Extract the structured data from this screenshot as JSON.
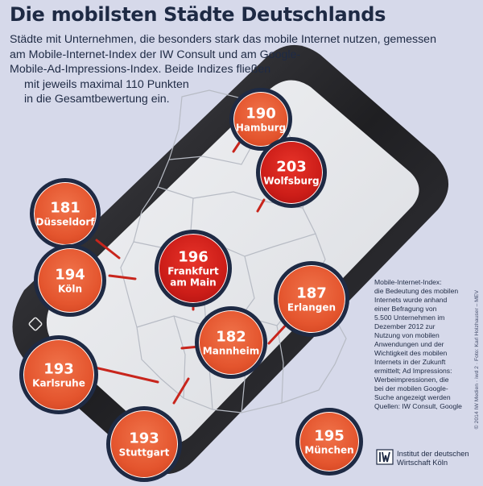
{
  "title": "Die mobilsten Städte Deutschlands",
  "intro_lines": [
    "Städte mit Unternehmen, die besonders stark das mobile Internet nutzen, gemessen",
    "am Mobile-Internet-Index der IW Consult und am Google-",
    "Mobile-Ad-Impressions-Index. Beide Indizes fließen",
    "mit jeweils maximal 110 Punkten",
    "in die Gesamtbewertung ein."
  ],
  "cities": [
    {
      "name": "Hamburg",
      "score": "190",
      "highlight": false
    },
    {
      "name": "Wolfsburg",
      "score": "203",
      "highlight": true
    },
    {
      "name": "Düsseldorf",
      "score": "181",
      "highlight": false
    },
    {
      "name": "Köln",
      "score": "194",
      "highlight": false
    },
    {
      "name": "Frankfurt am Main",
      "score": "196",
      "highlight": true
    },
    {
      "name": "Erlangen",
      "score": "187",
      "highlight": false
    },
    {
      "name": "Mannheim",
      "score": "182",
      "highlight": false
    },
    {
      "name": "Karlsruhe",
      "score": "193",
      "highlight": false
    },
    {
      "name": "Stuttgart",
      "score": "193",
      "highlight": false
    },
    {
      "name": "München",
      "score": "195",
      "highlight": false
    }
  ],
  "legend_lines": [
    "Mobile-Internet-Index:",
    "die Bedeutung des mobilen",
    "Internets wurde anhand",
    "einer Befragung von",
    "5.500 Unternehmen im",
    "Dezember 2012 zur",
    "Nutzung von mobilen",
    "Anwendungen und der",
    "Wichtigkeit des mobilen",
    "Internets in der Zukunft",
    "ermittelt; Ad Impressions:",
    "Werbeimpressionen, die",
    "bei der mobilen Google-",
    "Suche angezeigt werden",
    "Quellen: IW Consult, Google"
  ],
  "credit": "© 2014 IW Medien · iwd 2 · Foto: Karl Holzhauser – MEV",
  "logo_lines": [
    "Institut der deutschen",
    "Wirtschaft Köln"
  ],
  "colors": {
    "bubble": "#e4552e",
    "bubble_highlight": "#cc1d18",
    "bubble_border": "#1e2a44",
    "connector": "#c8251c",
    "phone_body": "#1f1f22",
    "background": "#d6d9ea",
    "text": "#1e2a44"
  }
}
